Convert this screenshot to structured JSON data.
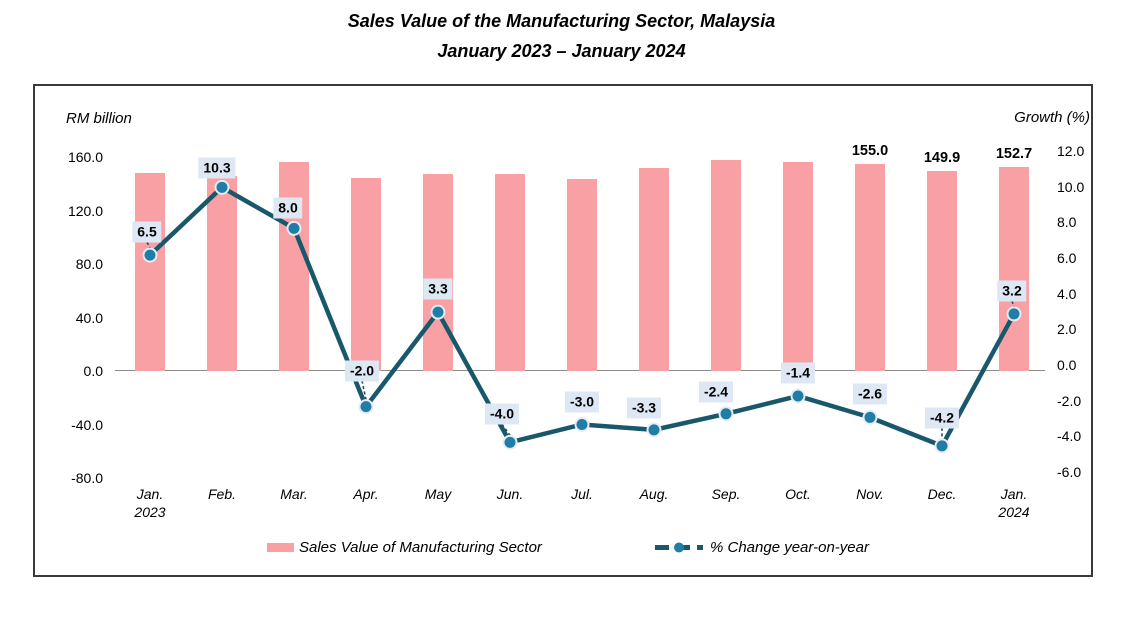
{
  "title": {
    "line1": "Sales Value of the Manufacturing Sector, Malaysia",
    "line2": "January 2023 – January 2024"
  },
  "axes": {
    "left": {
      "unit": "RM billion",
      "tick_labels": [
        "160.0",
        "120.0",
        "80.0",
        "40.0",
        "0.0",
        "-40.0",
        "-80.0"
      ]
    },
    "right": {
      "unit": "Growth (%)",
      "tick_labels": [
        "12.0",
        "10.0",
        "8.0",
        "6.0",
        "4.0",
        "2.0",
        "0.0",
        "-2.0",
        "-4.0",
        "-6.0"
      ]
    }
  },
  "legend": {
    "bar_label": "Sales Value of Manufacturing Sector",
    "line_label": "% Change year-on-year"
  },
  "colors": {
    "bar": "#f9a0a5",
    "line": "#19586b",
    "marker": "#1f7da6",
    "marker_ring": "#e5ecf3",
    "point_label_bg": "#dee8f4",
    "leader": "#2a4a55"
  },
  "chart_data": {
    "type": "combo bar+line",
    "title": "Sales Value of the Manufacturing Sector, Malaysia January 2023 – January 2024",
    "categories": [
      "Jan.",
      "Feb.",
      "Mar.",
      "Apr.",
      "May",
      "Jun.",
      "Jul.",
      "Aug.",
      "Sep.",
      "Oct.",
      "Nov.",
      "Dec.",
      "Jan."
    ],
    "category_sublabels": [
      "2023",
      "",
      "",
      "",
      "",
      "",
      "",
      "",
      "",
      "",
      "",
      "",
      "2024"
    ],
    "left_axis": {
      "label": "RM billion",
      "range": [
        -80,
        160
      ],
      "step": 40
    },
    "right_axis": {
      "label": "Growth (%)",
      "range": [
        -6,
        12
      ],
      "step": 2
    },
    "grid": "zero line only",
    "legend_position": "bottom",
    "series": [
      {
        "name": "Sales Value of Manufacturing Sector",
        "type": "bar",
        "axis": "left",
        "values": [
          148.0,
          145.6,
          156.5,
          144.2,
          147.5,
          147.5,
          143.8,
          152.0,
          157.4,
          156.6,
          155.0,
          149.9,
          152.7
        ],
        "value_labels": [
          null,
          null,
          null,
          null,
          null,
          null,
          null,
          null,
          null,
          null,
          "155.0",
          "149.9",
          "152.7"
        ]
      },
      {
        "name": "% Change year-on-year",
        "type": "line",
        "axis": "right",
        "values": [
          6.5,
          10.3,
          8.0,
          -2.0,
          3.3,
          -4.0,
          -3.0,
          -3.3,
          -2.4,
          -1.4,
          -2.6,
          -4.2,
          3.2
        ],
        "point_labels": [
          "6.5",
          "10.3",
          "8.0",
          "-2.0",
          "3.3",
          "-4.0",
          "-3.0",
          "-3.3",
          "-2.4",
          "-1.4",
          "-2.6",
          "-4.2",
          "3.2"
        ]
      }
    ]
  }
}
